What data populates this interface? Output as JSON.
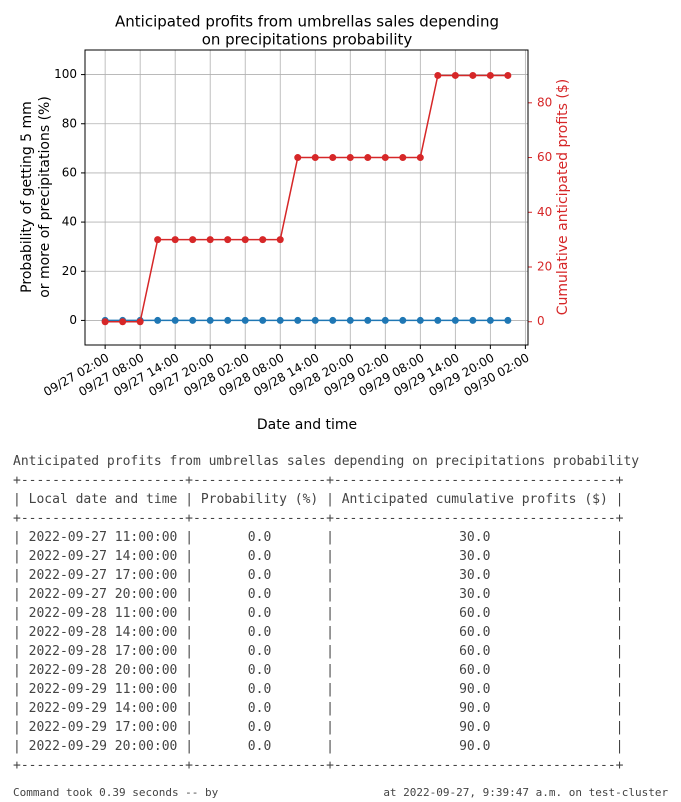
{
  "chart_data": {
    "type": "line",
    "title": [
      "Anticipated profits from umbrellas sales depending",
      "on precipitations probability"
    ],
    "xlabel": "Date and time",
    "ylabel": [
      "Probability of getting 5 mm",
      "or more of precipitations (%)"
    ],
    "y2label": "Cumulative anticipated profits ($)",
    "x": [
      "09/27 02:00",
      "09/27 05:00",
      "09/27 08:00",
      "09/27 11:00",
      "09/27 14:00",
      "09/27 17:00",
      "09/27 20:00",
      "09/27 23:00",
      "09/28 02:00",
      "09/28 05:00",
      "09/28 08:00",
      "09/28 11:00",
      "09/28 14:00",
      "09/28 17:00",
      "09/28 20:00",
      "09/28 23:00",
      "09/29 02:00",
      "09/29 05:00",
      "09/29 08:00",
      "09/29 11:00",
      "09/29 14:00",
      "09/29 17:00",
      "09/29 20:00",
      "09/29 23:00"
    ],
    "series": [
      {
        "color": "#1f77b4",
        "axis": "y",
        "values": [
          0,
          0,
          0,
          0,
          0,
          0,
          0,
          0,
          0,
          0,
          0,
          0,
          0,
          0,
          0,
          0,
          0,
          0,
          0,
          0,
          0,
          0,
          0,
          0
        ]
      },
      {
        "color": "#d62728",
        "axis": "y2",
        "values": [
          0,
          0,
          0,
          30,
          30,
          30,
          30,
          30,
          30,
          30,
          30,
          60,
          60,
          60,
          60,
          60,
          60,
          60,
          60,
          90,
          90,
          90,
          90,
          90
        ]
      }
    ],
    "xlim": [
      "09/26 22:33",
      "09/30 02:27"
    ],
    "xticks": [
      "09/27 02:00",
      "09/27 08:00",
      "09/27 14:00",
      "09/27 20:00",
      "09/28 02:00",
      "09/28 08:00",
      "09/28 14:00",
      "09/28 20:00",
      "09/29 02:00",
      "09/29 08:00",
      "09/29 14:00",
      "09/29 20:00",
      "09/30 02:00"
    ],
    "ylim": [
      -10,
      110
    ],
    "yticks": [
      0,
      20,
      40,
      60,
      80,
      100
    ],
    "y2lim": [
      -8.5,
      99.3
    ],
    "y2ticks": [
      0,
      20,
      40,
      60,
      80
    ],
    "y2color": "#d62728",
    "grid": true
  },
  "table": {
    "title": "Anticipated profits from umbrellas sales depending on precipitations probability",
    "columns": [
      "Local date and time",
      "Probability (%)",
      "Anticipated cumulative profits ($)"
    ],
    "rows": [
      [
        "2022-09-27 11:00:00",
        "0.0",
        "30.0"
      ],
      [
        "2022-09-27 14:00:00",
        "0.0",
        "30.0"
      ],
      [
        "2022-09-27 17:00:00",
        "0.0",
        "30.0"
      ],
      [
        "2022-09-27 20:00:00",
        "0.0",
        "30.0"
      ],
      [
        "2022-09-28 11:00:00",
        "0.0",
        "60.0"
      ],
      [
        "2022-09-28 14:00:00",
        "0.0",
        "60.0"
      ],
      [
        "2022-09-28 17:00:00",
        "0.0",
        "60.0"
      ],
      [
        "2022-09-28 20:00:00",
        "0.0",
        "60.0"
      ],
      [
        "2022-09-29 11:00:00",
        "0.0",
        "90.0"
      ],
      [
        "2022-09-29 14:00:00",
        "0.0",
        "90.0"
      ],
      [
        "2022-09-29 17:00:00",
        "0.0",
        "90.0"
      ],
      [
        "2022-09-29 20:00:00",
        "0.0",
        "90.0"
      ]
    ]
  },
  "footer": [
    "Command took 0.39 seconds -- by",
    "at 2022-09-27, 9:39:47 a.m. on test-cluster"
  ]
}
